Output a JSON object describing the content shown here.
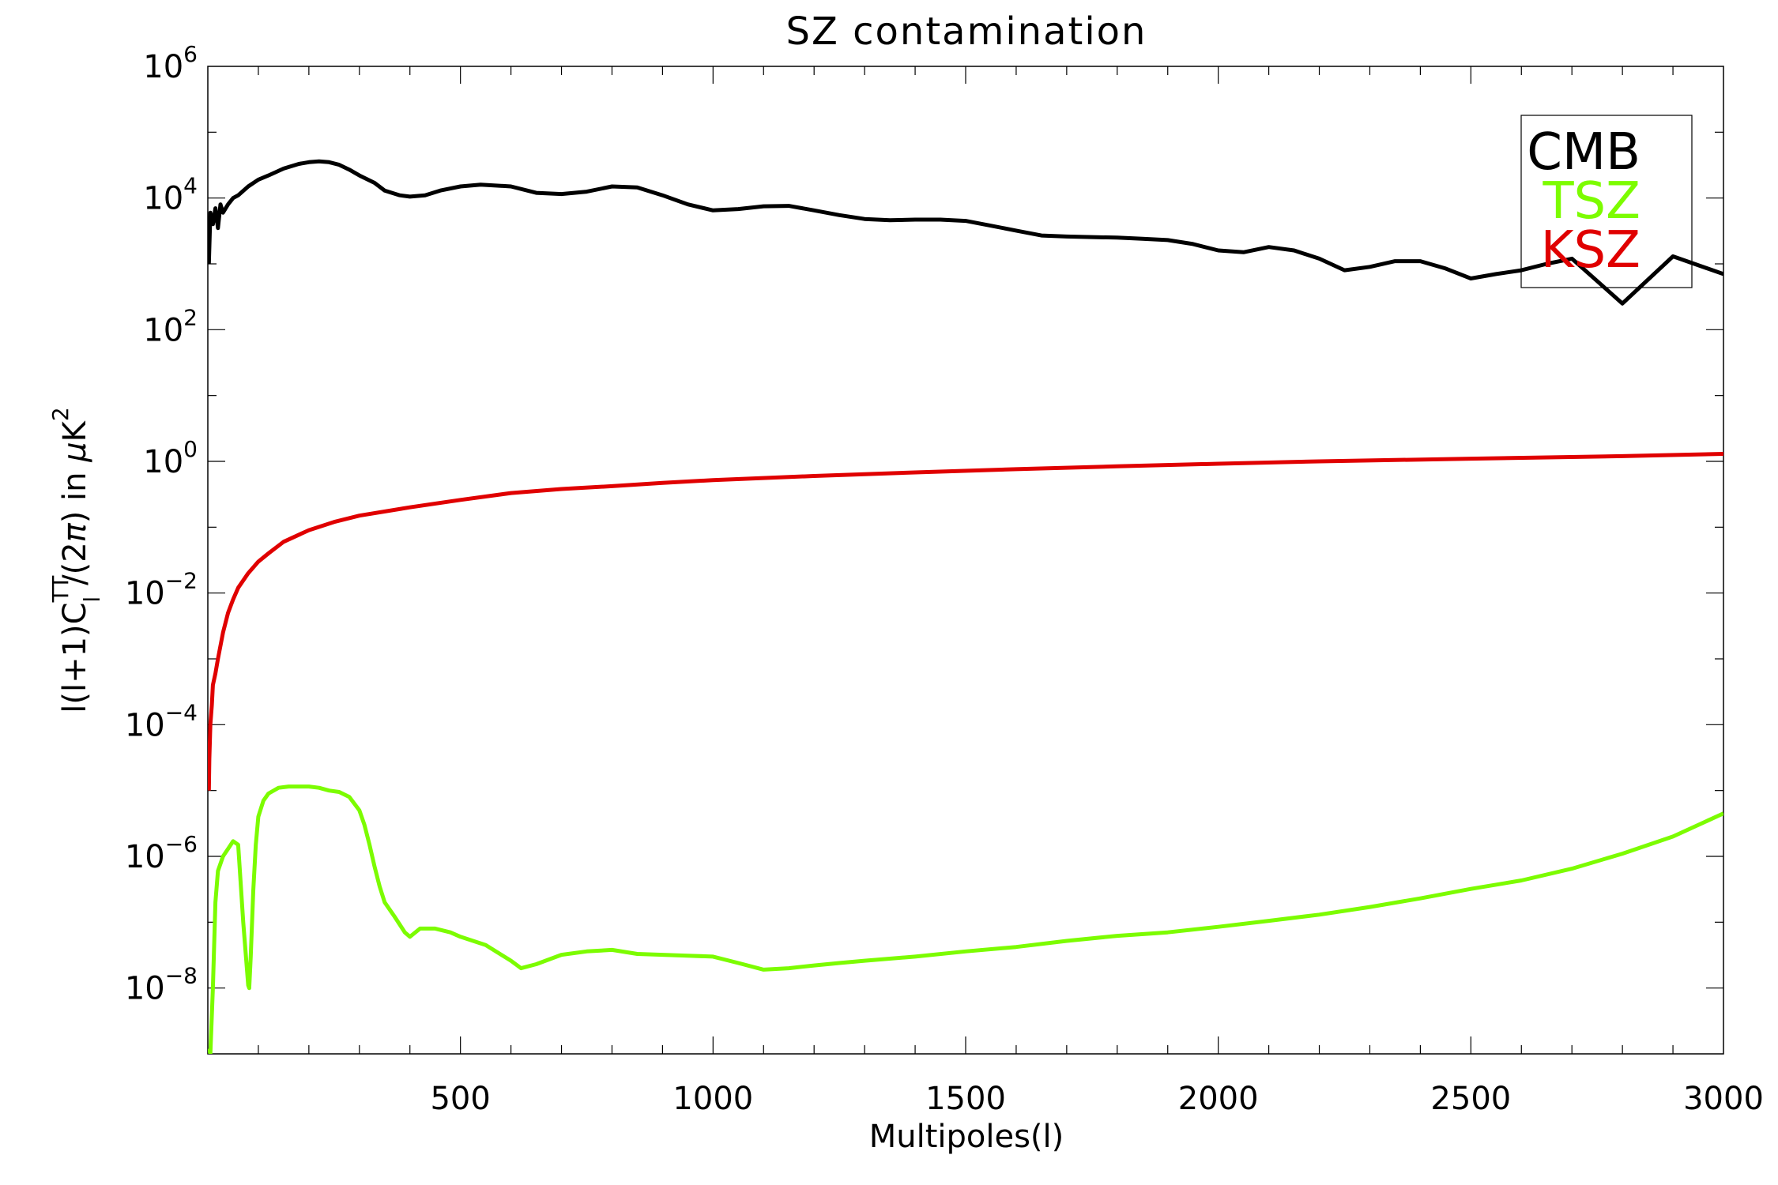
{
  "chart_data": {
    "type": "line",
    "title": "SZ contamination",
    "xlabel": "Multipoles(l)",
    "ylabel": "l(l+1)Cₗᵀᵀ/(2π) in μK²",
    "ylabel_parts": {
      "pre": "l(l+1)C",
      "sup": "TT",
      "sub": "l",
      "mid": "/(2",
      "pi": "π",
      "post": ") in ",
      "mu": "μ",
      "k": "K",
      "ksup": "2"
    },
    "xscale": "linear",
    "yscale": "log",
    "xlim": [
      0,
      3000
    ],
    "ylim": [
      1e-09,
      1000000.0
    ],
    "grid": false,
    "legend_position": "top-right",
    "x_ticks": [
      {
        "value": 500,
        "label": "500"
      },
      {
        "value": 1000,
        "label": "1000"
      },
      {
        "value": 1500,
        "label": "1500"
      },
      {
        "value": 2000,
        "label": "2000"
      },
      {
        "value": 2500,
        "label": "2500"
      },
      {
        "value": 3000,
        "label": "3000"
      }
    ],
    "y_ticks": [
      {
        "exp": 6,
        "base": "10",
        "sup": "6"
      },
      {
        "exp": 4,
        "base": "10",
        "sup": "4"
      },
      {
        "exp": 2,
        "base": "10",
        "sup": "2"
      },
      {
        "exp": 0,
        "base": "10",
        "sup": "0"
      },
      {
        "exp": -2,
        "base": "10",
        "sup": "−2"
      },
      {
        "exp": -4,
        "base": "10",
        "sup": "−4"
      },
      {
        "exp": -6,
        "base": "10",
        "sup": "−6"
      },
      {
        "exp": -8,
        "base": "10",
        "sup": "−8"
      }
    ],
    "series": [
      {
        "name": "CMB",
        "color": "#000000",
        "x": [
          2,
          5,
          10,
          15,
          20,
          25,
          30,
          40,
          50,
          60,
          80,
          100,
          120,
          150,
          180,
          200,
          220,
          240,
          260,
          280,
          300,
          330,
          350,
          380,
          400,
          430,
          460,
          500,
          540,
          600,
          650,
          700,
          750,
          800,
          850,
          900,
          950,
          1000,
          1050,
          1100,
          1150,
          1200,
          1250,
          1300,
          1350,
          1400,
          1450,
          1500,
          1550,
          1600,
          1650,
          1700,
          1750,
          1800,
          1850,
          1900,
          1950,
          2000,
          2050,
          2100,
          2150,
          2200,
          2250,
          2300,
          2350,
          2400,
          2450,
          2500,
          2550,
          2600,
          2650,
          2700,
          2800,
          2900,
          3000
        ],
        "y": [
          1000,
          6000,
          4000,
          7000,
          3500,
          8000,
          6000,
          8000,
          10000,
          11000,
          15000,
          19000,
          22000,
          28000,
          33000,
          35000,
          36000,
          35000,
          32000,
          27000,
          22000,
          17000,
          13000,
          11000,
          10500,
          11000,
          13000,
          15000,
          16000,
          15000,
          12000,
          11500,
          12500,
          15000,
          14500,
          11000,
          8000,
          6500,
          6800,
          7500,
          7600,
          6500,
          5500,
          4800,
          4600,
          4700,
          4700,
          4500,
          3800,
          3200,
          2700,
          2600,
          2550,
          2500,
          2400,
          2300,
          2000,
          1600,
          1500,
          1800,
          1600,
          1200,
          800,
          900,
          1100,
          1100,
          850,
          600,
          700,
          800,
          1000,
          1200,
          250,
          1300,
          700
        ]
      },
      {
        "name": "TSZ",
        "color": "#7cfc00",
        "x": [
          2,
          5,
          10,
          15,
          20,
          30,
          40,
          50,
          60,
          70,
          80,
          82,
          85,
          90,
          95,
          100,
          110,
          120,
          140,
          160,
          180,
          200,
          220,
          240,
          260,
          280,
          300,
          310,
          320,
          330,
          340,
          350,
          370,
          390,
          400,
          420,
          450,
          480,
          500,
          550,
          600,
          620,
          650,
          700,
          750,
          800,
          850,
          900,
          950,
          1000,
          1050,
          1100,
          1150,
          1200,
          1250,
          1300,
          1400,
          1500,
          1600,
          1700,
          1800,
          1900,
          2000,
          2100,
          2200,
          2300,
          2400,
          2500,
          2600,
          2700,
          2800,
          2900,
          3000
        ],
        "y": [
          1.2e-09,
          1e-09,
          1e-08,
          2e-07,
          6e-07,
          1e-06,
          1.3e-06,
          1.7e-06,
          1.5e-06,
          1e-07,
          1.1e-08,
          1e-08,
          3e-08,
          3e-07,
          1.5e-06,
          4e-06,
          7e-06,
          9e-06,
          1.1e-05,
          1.15e-05,
          1.15e-05,
          1.15e-05,
          1.1e-05,
          1e-05,
          9.5e-06,
          8e-06,
          5e-06,
          3e-06,
          1.5e-06,
          7e-07,
          3.5e-07,
          2e-07,
          1.2e-07,
          7e-08,
          6e-08,
          8e-08,
          8e-08,
          7e-08,
          6e-08,
          4.5e-08,
          2.6e-08,
          2e-08,
          2.3e-08,
          3.2e-08,
          3.6e-08,
          3.8e-08,
          3.3e-08,
          3.2e-08,
          3.1e-08,
          3e-08,
          2.4e-08,
          1.9e-08,
          2e-08,
          2.2e-08,
          2.4e-08,
          2.6e-08,
          3e-08,
          3.6e-08,
          4.2e-08,
          5.2e-08,
          6.2e-08,
          7e-08,
          8.5e-08,
          1.05e-07,
          1.3e-07,
          1.7e-07,
          2.3e-07,
          3.2e-07,
          4.3e-07,
          6.5e-07,
          1.1e-06,
          2e-06,
          4.5e-06
        ]
      },
      {
        "name": "KSZ",
        "color": "#e00000",
        "x": [
          2,
          3,
          5,
          8,
          10,
          15,
          20,
          30,
          40,
          50,
          60,
          80,
          100,
          120,
          150,
          200,
          250,
          300,
          400,
          500,
          600,
          700,
          800,
          900,
          1000,
          1200,
          1400,
          1600,
          1800,
          2000,
          2200,
          2500,
          2800,
          3000
        ],
        "y": [
          1e-05,
          3e-05,
          0.0001,
          0.0002,
          0.0004,
          0.0006,
          0.001,
          0.0025,
          0.005,
          0.008,
          0.012,
          0.02,
          0.03,
          0.04,
          0.06,
          0.09,
          0.12,
          0.15,
          0.2,
          0.26,
          0.33,
          0.38,
          0.42,
          0.47,
          0.52,
          0.6,
          0.68,
          0.76,
          0.84,
          0.92,
          1.0,
          1.1,
          1.2,
          1.3
        ]
      }
    ]
  }
}
